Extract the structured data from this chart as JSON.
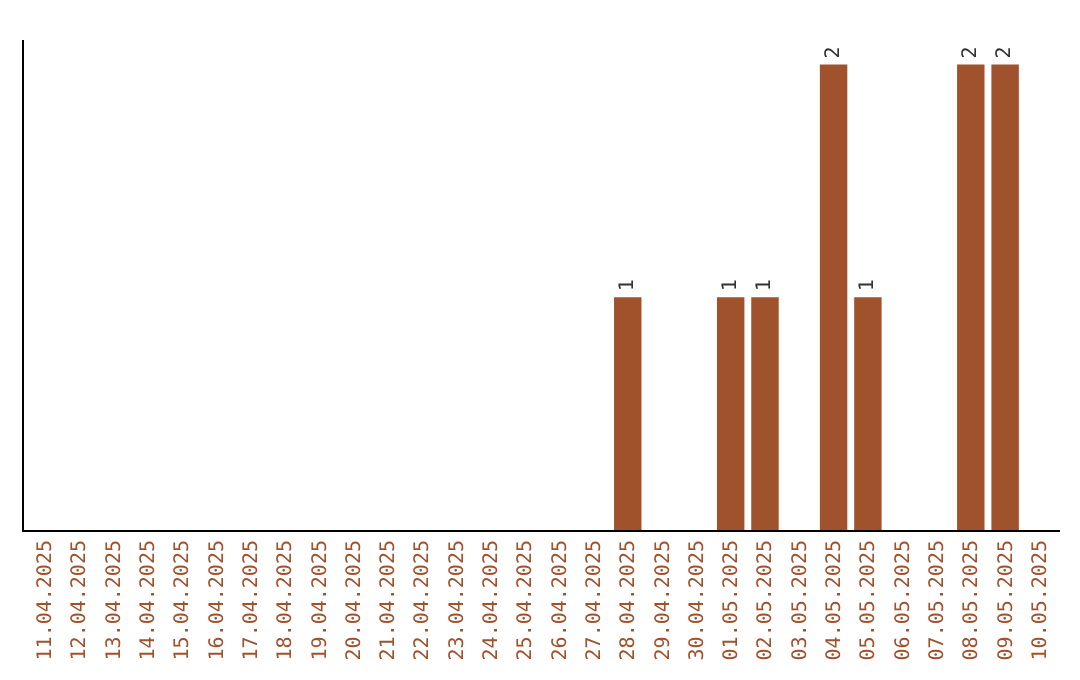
{
  "chart_data": {
    "type": "bar",
    "categories": [
      "11.04.2025",
      "12.04.2025",
      "13.04.2025",
      "14.04.2025",
      "15.04.2025",
      "16.04.2025",
      "17.04.2025",
      "18.04.2025",
      "19.04.2025",
      "20.04.2025",
      "21.04.2025",
      "22.04.2025",
      "23.04.2025",
      "24.04.2025",
      "25.04.2025",
      "26.04.2025",
      "27.04.2025",
      "28.04.2025",
      "29.04.2025",
      "30.04.2025",
      "01.05.2025",
      "02.05.2025",
      "03.05.2025",
      "04.05.2025",
      "05.05.2025",
      "06.05.2025",
      "07.05.2025",
      "08.05.2025",
      "09.05.2025",
      "10.05.2025"
    ],
    "values": [
      null,
      null,
      null,
      null,
      null,
      null,
      null,
      null,
      null,
      null,
      null,
      null,
      null,
      null,
      null,
      null,
      null,
      1,
      null,
      null,
      1,
      1,
      null,
      2,
      1,
      null,
      null,
      2,
      2,
      null
    ],
    "color": "#a0522d",
    "data_labels": true,
    "tick_labels": "x"
  }
}
